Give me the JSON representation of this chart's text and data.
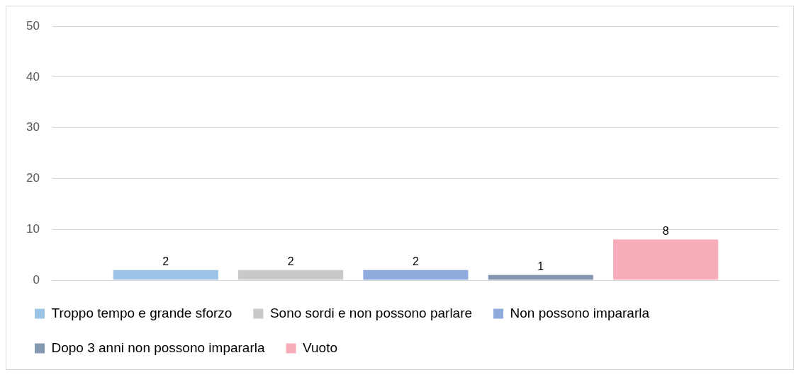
{
  "chart_data": {
    "type": "bar",
    "categories": [
      null
    ],
    "series": [
      {
        "name": "Troppo tempo e grande sforzo",
        "color": "#9dc3e6",
        "values": [
          2
        ]
      },
      {
        "name": "Sono sordi e non possono parlare",
        "color": "#c9c9c9",
        "values": [
          2
        ]
      },
      {
        "name": "Non possono impararla",
        "color": "#8faadc",
        "values": [
          2
        ]
      },
      {
        "name": "Dopo 3 anni non possono impararla",
        "color": "#8497b0",
        "values": [
          1
        ]
      },
      {
        "name": "Vuoto",
        "color": "#f7adb9",
        "values": [
          8
        ]
      }
    ],
    "ylim": [
      0,
      50
    ],
    "yticks": [
      0,
      10,
      20,
      30,
      40,
      50
    ],
    "grid": "y",
    "legend": "bottom",
    "data_labels": true
  }
}
